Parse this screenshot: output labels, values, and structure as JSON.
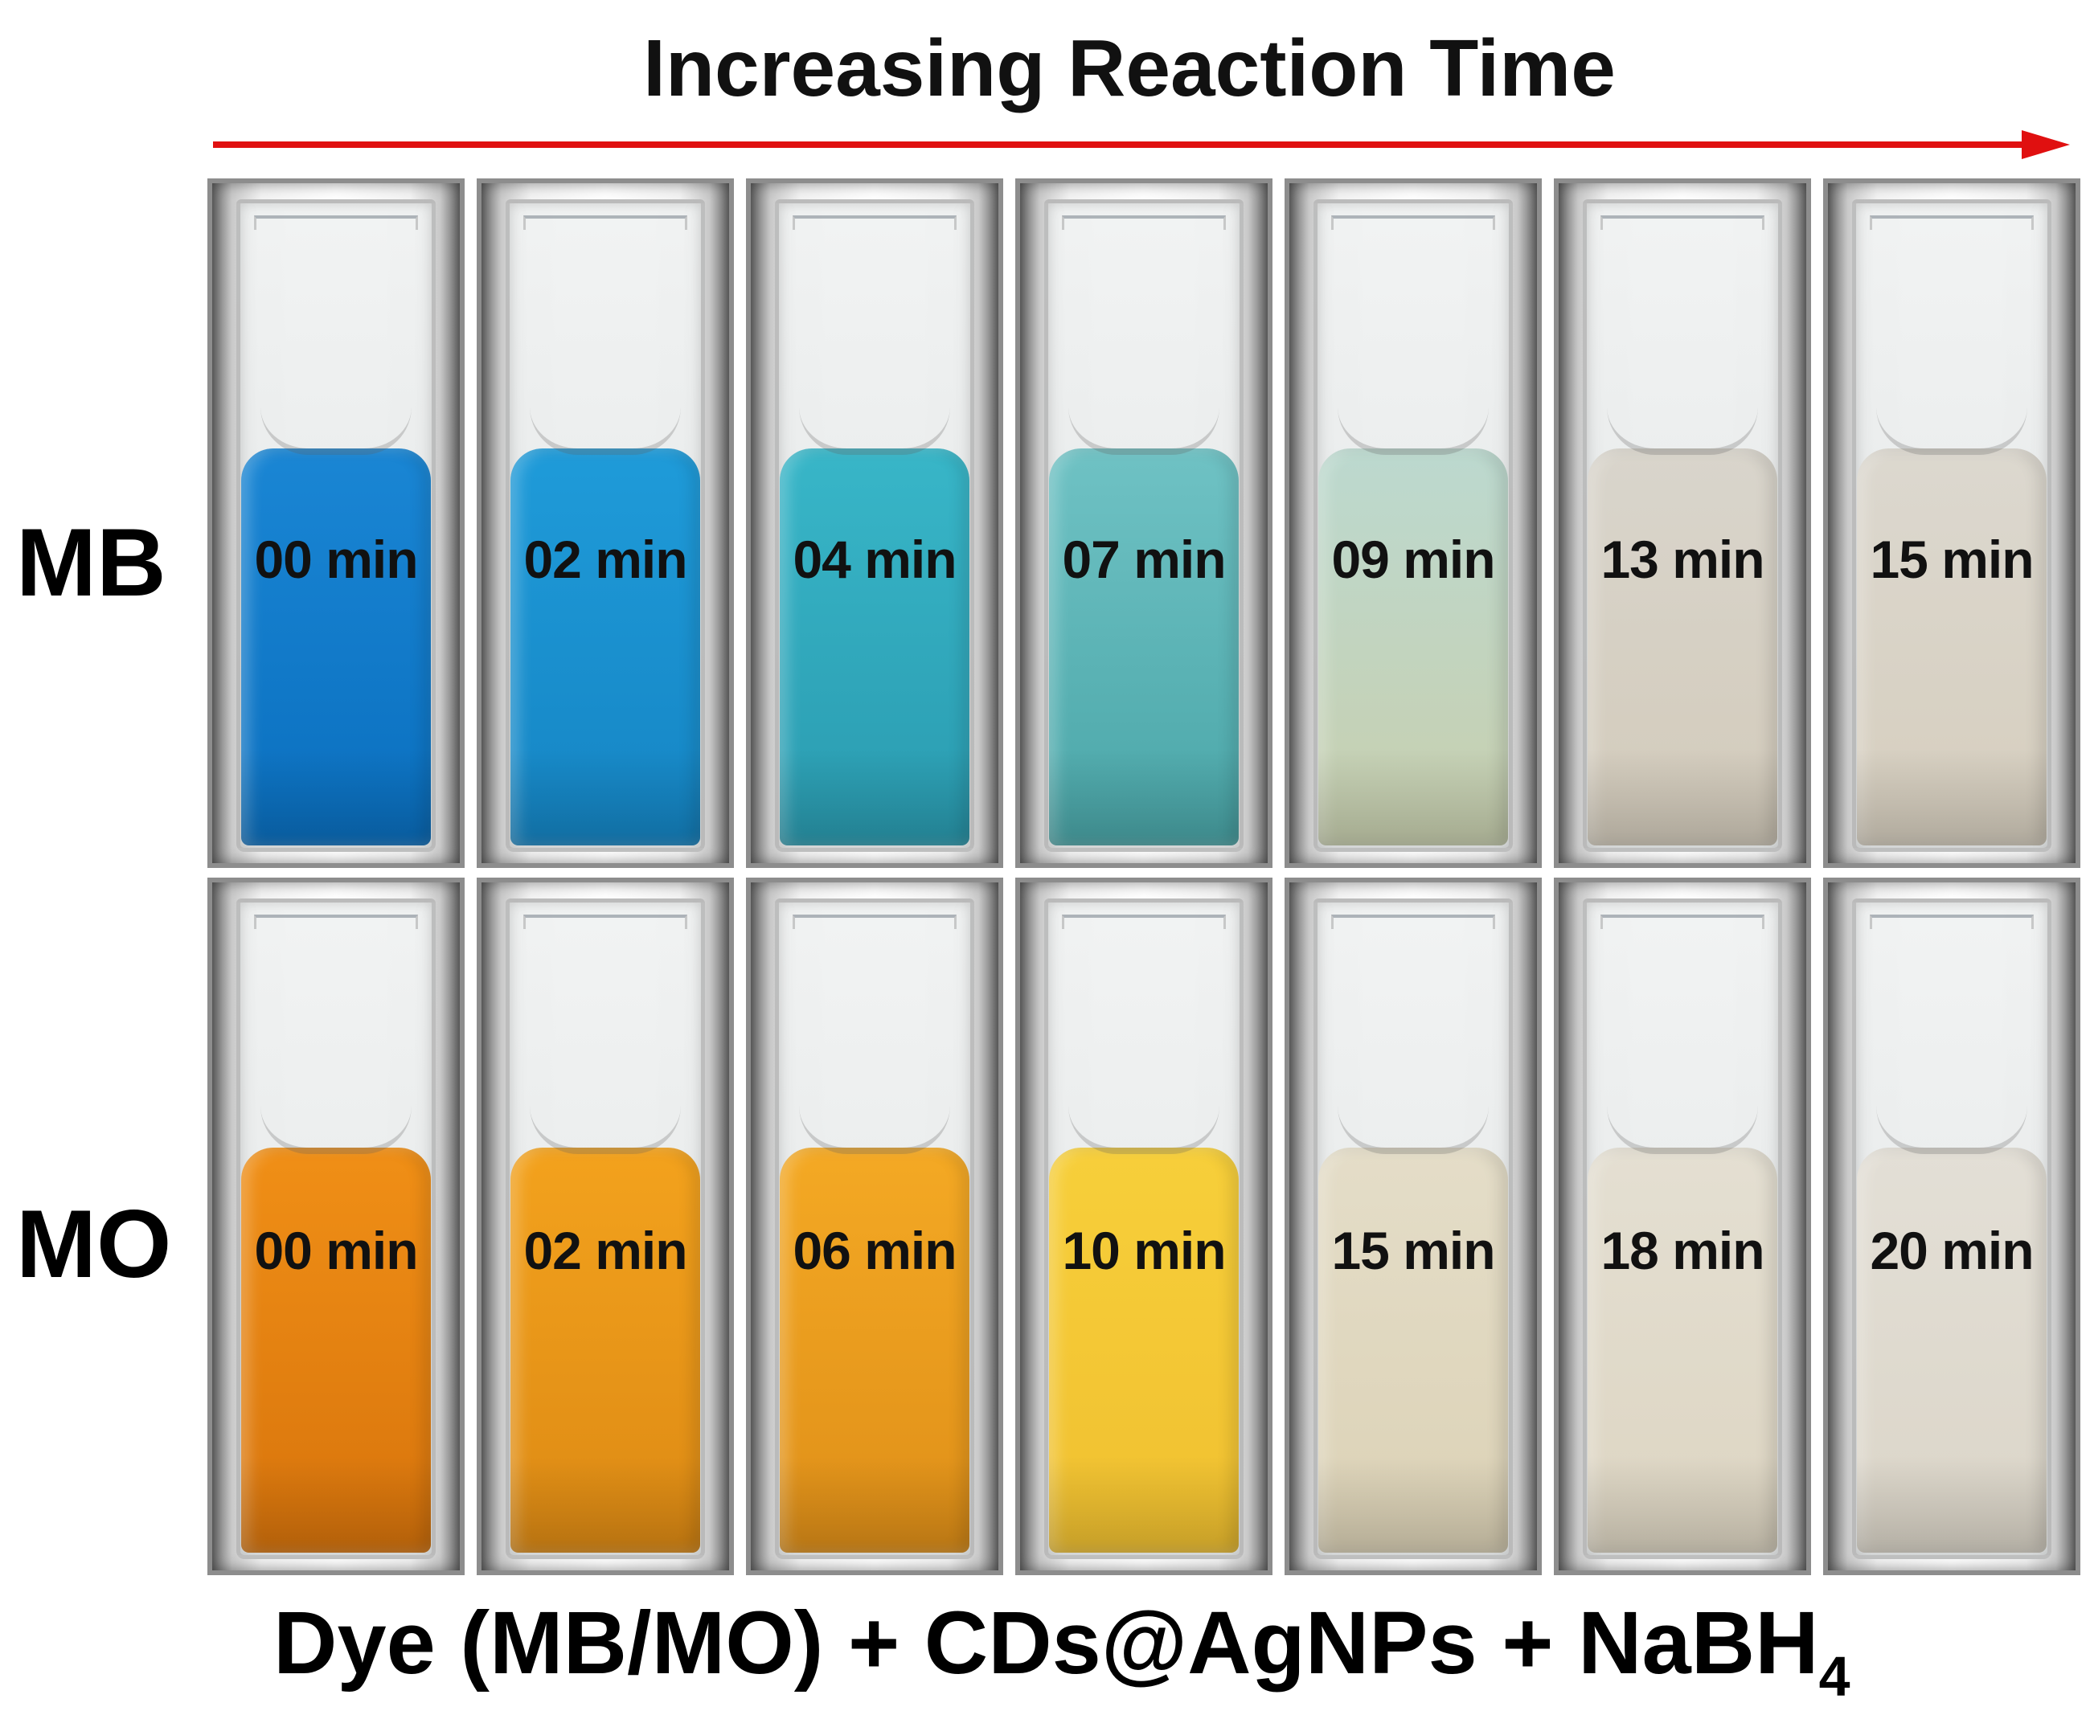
{
  "title": "Increasing Reaction Time",
  "arrow_color": "#e01010",
  "rows": [
    {
      "label": "MB",
      "cuvettes": [
        {
          "time": "00 min",
          "liquid_top": "#1a86d4",
          "liquid_bottom": "#0a6fbf"
        },
        {
          "time": "02 min",
          "liquid_top": "#1f9bd9",
          "liquid_bottom": "#1585c4"
        },
        {
          "time": "04 min",
          "liquid_top": "#38b6c8",
          "liquid_bottom": "#2a9bb0"
        },
        {
          "time": "07 min",
          "liquid_top": "#6fc2c4",
          "liquid_bottom": "#4aa6a8"
        },
        {
          "time": "09 min",
          "liquid_top": "#bcd9cf",
          "liquid_bottom": "#c8cfae"
        },
        {
          "time": "13 min",
          "liquid_top": "#d9d5cc",
          "liquid_bottom": "#d3cbbb"
        },
        {
          "time": "15 min",
          "liquid_top": "#dcd8cf",
          "liquid_bottom": "#d6cebe"
        }
      ]
    },
    {
      "label": "MO",
      "cuvettes": [
        {
          "time": "00 min",
          "liquid_top": "#f08f16",
          "liquid_bottom": "#d8740c"
        },
        {
          "time": "02 min",
          "liquid_top": "#f3a21d",
          "liquid_bottom": "#dd8a14"
        },
        {
          "time": "06 min",
          "liquid_top": "#f4a924",
          "liquid_bottom": "#df8f18"
        },
        {
          "time": "10 min",
          "liquid_top": "#f7cf3a",
          "liquid_bottom": "#f0c030"
        },
        {
          "time": "15 min",
          "liquid_top": "#e4ddc8",
          "liquid_bottom": "#dcd2b6"
        },
        {
          "time": "18 min",
          "liquid_top": "#e4dfd2",
          "liquid_bottom": "#ddd5c2"
        },
        {
          "time": "20 min",
          "liquid_top": "#e3dfd6",
          "liquid_bottom": "#dbd5c8"
        }
      ]
    }
  ],
  "formula": {
    "main": "Dye (MB/MO) + CDs@AgNPs + NaBH",
    "subscript": "4"
  }
}
